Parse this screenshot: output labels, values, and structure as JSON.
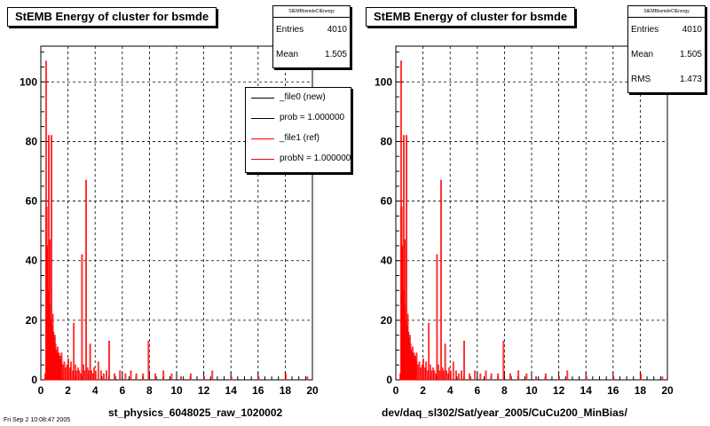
{
  "footer_text": "Fri Sep 2 10:08:47 2005",
  "pads": [
    {
      "title": "StEMB Energy of cluster for bsmde",
      "stats": {
        "header": "StEMBbsmdeCIEnergy",
        "rows": [
          {
            "label": "Entries",
            "value": "4010"
          },
          {
            "label": "Mean",
            "value": "1.505"
          }
        ]
      },
      "legend": [
        {
          "label": "_file0 (new)",
          "color": "#000000"
        },
        {
          "label": "prob = 1.000000",
          "color": "#000000"
        },
        {
          "label": "_file1 (ref)",
          "color": "#ff0000"
        },
        {
          "label": "probN = 1.000000",
          "color": "#ff0000"
        }
      ],
      "xtitle": "st_physics_6048025_raw_1020002"
    },
    {
      "title": "StEMB Energy of cluster for bsmde",
      "stats": {
        "header": "StEMBbsmdeCIEnergy",
        "rows": [
          {
            "label": "Entries",
            "value": "4010"
          },
          {
            "label": "Mean",
            "value": "1.505"
          },
          {
            "label": "RMS",
            "value": "1.473"
          }
        ]
      },
      "legend": [],
      "xtitle": "dev/daq_sl302/Sat/year_2005/CuCu200_MinBias/"
    }
  ],
  "chart_data": [
    {
      "type": "bar",
      "title": "StEMB Energy of cluster for bsmde",
      "xlabel": "st_physics_6048025_raw_1020002",
      "ylabel": "",
      "xlim": [
        0,
        20
      ],
      "ylim": [
        0,
        112
      ],
      "xticks": [
        "0",
        "2",
        "4",
        "6",
        "8",
        "10",
        "12",
        "14",
        "16",
        "18",
        "20"
      ],
      "yticks": [
        "0",
        "20",
        "40",
        "60",
        "80",
        "100"
      ],
      "grid": true,
      "bin_width": 0.05,
      "series": [
        {
          "name": "_file1 (ref)",
          "color": "#ff0000",
          "x": [
            0.3,
            0.35,
            0.4,
            0.45,
            0.5,
            0.55,
            0.6,
            0.65,
            0.7,
            0.75,
            0.8,
            0.85,
            0.9,
            0.95,
            1.0,
            1.05,
            1.1,
            1.15,
            1.2,
            1.25,
            1.3,
            1.35,
            1.4,
            1.45,
            1.5,
            1.6,
            1.7,
            1.8,
            1.9,
            2.0,
            2.1,
            2.2,
            2.3,
            2.4,
            2.5,
            2.6,
            2.7,
            2.8,
            2.9,
            3.0,
            3.1,
            3.2,
            3.3,
            3.4,
            3.5,
            3.6,
            3.7,
            3.8,
            3.9,
            4.0,
            4.2,
            4.4,
            4.6,
            4.8,
            5.0,
            5.4,
            5.8,
            6.2,
            6.6,
            7.0,
            7.5,
            7.9,
            8.4,
            9.0,
            9.6,
            10.3,
            11.0,
            12.0,
            12.6,
            14.0,
            16.0,
            18.0,
            19.6
          ],
          "values": [
            2,
            107,
            58,
            45,
            30,
            82,
            25,
            47,
            20,
            82,
            18,
            22,
            16,
            14,
            15,
            12,
            10,
            9,
            11,
            8,
            9,
            7,
            8,
            6,
            9,
            5,
            6,
            4,
            5,
            7,
            4,
            6,
            3,
            19,
            5,
            3,
            4,
            3,
            2,
            42,
            5,
            3,
            67,
            4,
            3,
            12,
            3,
            2,
            4,
            3,
            6,
            3,
            2,
            3,
            13,
            2,
            3,
            2,
            3,
            2,
            2,
            13,
            2,
            3,
            2,
            1,
            2,
            1,
            3,
            1,
            1,
            2,
            1
          ]
        }
      ]
    },
    {
      "type": "bar",
      "title": "StEMB Energy of cluster for bsmde",
      "xlabel": "dev/daq_sl302/Sat/year_2005/CuCu200_MinBias/",
      "ylabel": "",
      "xlim": [
        0,
        20
      ],
      "ylim": [
        0,
        112
      ],
      "xticks": [
        "0",
        "2",
        "4",
        "6",
        "8",
        "10",
        "12",
        "14",
        "16",
        "18",
        "20"
      ],
      "yticks": [
        "0",
        "20",
        "40",
        "60",
        "80",
        "100"
      ],
      "grid": true,
      "bin_width": 0.05,
      "series": [
        {
          "name": "",
          "color": "#ff0000",
          "x": [
            0.3,
            0.35,
            0.4,
            0.45,
            0.5,
            0.55,
            0.6,
            0.65,
            0.7,
            0.75,
            0.8,
            0.85,
            0.9,
            0.95,
            1.0,
            1.05,
            1.1,
            1.15,
            1.2,
            1.25,
            1.3,
            1.35,
            1.4,
            1.45,
            1.5,
            1.6,
            1.7,
            1.8,
            1.9,
            2.0,
            2.1,
            2.2,
            2.3,
            2.4,
            2.5,
            2.6,
            2.7,
            2.8,
            2.9,
            3.0,
            3.1,
            3.2,
            3.3,
            3.4,
            3.5,
            3.6,
            3.7,
            3.8,
            3.9,
            4.0,
            4.2,
            4.4,
            4.6,
            4.8,
            5.0,
            5.4,
            5.8,
            6.2,
            6.6,
            7.0,
            7.5,
            7.9,
            8.4,
            9.0,
            9.6,
            10.3,
            11.0,
            12.0,
            12.6,
            14.0,
            16.0,
            18.0,
            19.6
          ],
          "values": [
            2,
            107,
            58,
            45,
            30,
            82,
            25,
            47,
            20,
            82,
            18,
            22,
            16,
            14,
            15,
            12,
            10,
            9,
            11,
            8,
            9,
            7,
            8,
            6,
            9,
            5,
            6,
            4,
            5,
            7,
            4,
            6,
            3,
            19,
            5,
            3,
            4,
            3,
            2,
            42,
            5,
            3,
            67,
            4,
            3,
            12,
            3,
            2,
            4,
            3,
            6,
            3,
            2,
            3,
            13,
            2,
            3,
            2,
            3,
            2,
            2,
            13,
            2,
            3,
            2,
            1,
            2,
            1,
            3,
            1,
            1,
            2,
            1
          ]
        }
      ]
    }
  ]
}
